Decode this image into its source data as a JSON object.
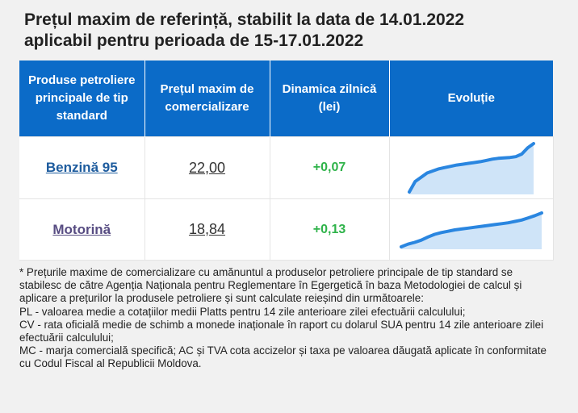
{
  "title_line1": "Prețul maxim de referință, stabilit la data de 14.01.2022",
  "title_line2": "aplicabil pentru perioada de 15-17.01.2022",
  "table": {
    "headers": [
      "Produse petroliere principale de tip standard",
      "Prețul maxim de comercializare",
      "Dinamica zilnică (lei)",
      "Evoluție"
    ],
    "rows": [
      {
        "product": "Benzină 95",
        "price": "22,00",
        "dynamic": "+0,07"
      },
      {
        "product": "Motorină",
        "price": "18,84",
        "dynamic": "+0,13"
      }
    ]
  },
  "colors": {
    "header_bg": "#0b6bc8",
    "positive": "#2fb34a",
    "spark_line": "#2a86e0",
    "spark_fill": "#cfe4f8"
  },
  "chart_data": [
    {
      "type": "area",
      "series": [
        {
          "values": [
            0,
            2.5,
            3.5,
            4.5,
            5,
            5.5,
            5.8,
            6.1,
            6.4,
            6.6,
            6.8,
            7,
            7.2,
            7.5,
            7.8,
            8,
            8.1,
            8.2,
            8.4,
            9,
            10.5,
            11.5
          ]
        }
      ]
    },
    {
      "type": "area",
      "series": [
        {
          "values": [
            0,
            0.6,
            1,
            1.5,
            2.2,
            2.8,
            3.2,
            3.5,
            3.8,
            4,
            4.2,
            4.4,
            4.6,
            4.8,
            5,
            5.2,
            5.4,
            5.7,
            6,
            6.5,
            7,
            7.6
          ]
        }
      ]
    }
  ],
  "footnote": [
    "* Prețurile maxime de comercializare cu amănuntul a produselor petroliere principale de tip standard se stabilesc de către Agenția Naționala pentru Reglementare în Egergetică în baza Metodologiei de calcul și aplicare a prețurilor la produsele petroliere și sunt calculate reieșind din următoarele:",
    "PL - valoarea medie a cotațiilor medii Platts pentru 14 zile anterioare zilei efectuării calculului;",
    "CV - rata oficială medie de schimb a monede inaționale în raport cu dolarul SUA pentru 14 zile anterioare zilei efectuării calculului;",
    "MC - marja comercială specifică; AC și TVA cota accizelor și taxa pe valoarea dăugată aplicate în conformitate cu Codul Fiscal al Republicii Moldova."
  ]
}
